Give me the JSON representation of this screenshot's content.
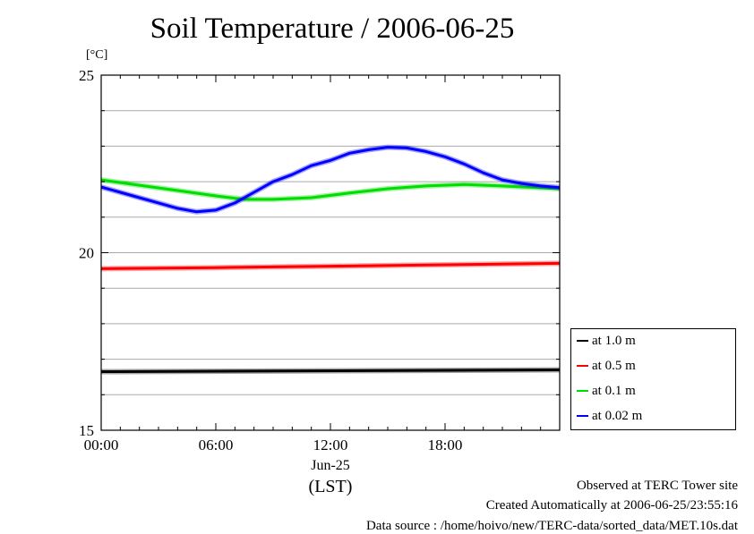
{
  "chart_data": {
    "type": "line",
    "title": "Soil Temperature / 2006-06-25",
    "ylabel": "[°C]",
    "xlabel": "(LST)",
    "x_date_label": "Jun-25",
    "xlim": [
      0,
      24
    ],
    "ylim": [
      15,
      25
    ],
    "y_ticks": [
      {
        "value": 15,
        "label": "15"
      },
      {
        "value": 20,
        "label": "20"
      },
      {
        "value": 25,
        "label": "25"
      }
    ],
    "y_minor_step": 1,
    "x_ticks": [
      {
        "value": 0,
        "label": "00:00"
      },
      {
        "value": 6,
        "label": "06:00"
      },
      {
        "value": 12,
        "label": "12:00"
      },
      {
        "value": 18,
        "label": "18:00"
      }
    ],
    "grid": true,
    "legend_position": "right-bottom",
    "series": [
      {
        "name": "at 1.0 m",
        "color": "#000000",
        "x": [
          0,
          24
        ],
        "y": [
          16.65,
          16.7
        ]
      },
      {
        "name": "at 0.5 m",
        "color": "#ff0000",
        "x": [
          0,
          6,
          12,
          18,
          24
        ],
        "y": [
          19.55,
          19.58,
          19.62,
          19.66,
          19.7
        ]
      },
      {
        "name": "at 0.1 m",
        "color": "#00dd00",
        "x": [
          0,
          2,
          4,
          6,
          7.5,
          9,
          11,
          13,
          15,
          17,
          19,
          21,
          24
        ],
        "y": [
          22.05,
          21.9,
          21.75,
          21.6,
          21.5,
          21.5,
          21.55,
          21.68,
          21.8,
          21.88,
          21.92,
          21.88,
          21.8
        ]
      },
      {
        "name": "at 0.02 m",
        "color": "#0000ff",
        "x": [
          0,
          1,
          2,
          3,
          4,
          5,
          6,
          7,
          8,
          9,
          10,
          11,
          12,
          13,
          14,
          15,
          16,
          17,
          18,
          19,
          20,
          21,
          22,
          23,
          24
        ],
        "y": [
          21.85,
          21.7,
          21.55,
          21.4,
          21.25,
          21.15,
          21.2,
          21.4,
          21.7,
          22.0,
          22.2,
          22.45,
          22.6,
          22.8,
          22.9,
          22.97,
          22.95,
          22.85,
          22.7,
          22.5,
          22.25,
          22.05,
          21.95,
          21.88,
          21.83
        ]
      }
    ]
  },
  "footer": {
    "line1": "Observed at TERC Tower site",
    "line2": "Created Automatically at 2006-06-25/23:55:16",
    "line3": "Data source : /home/hoivo/new/TERC-data/sorted_data/MET.10s.dat"
  }
}
